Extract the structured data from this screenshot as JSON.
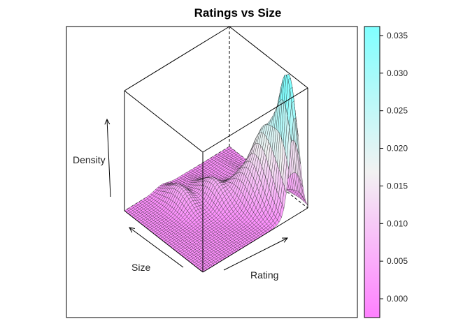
{
  "chart_data": {
    "type": "surface",
    "title": "Ratings vs Size",
    "xlabel": "Rating",
    "ylabel": "Size",
    "zlabel": "Density",
    "colorkey": {
      "ticks": [
        "0.000",
        "0.005",
        "0.010",
        "0.015",
        "0.020",
        "0.025",
        "0.030",
        "0.035"
      ],
      "tick_values": [
        0.0,
        0.005,
        0.01,
        0.015,
        0.02,
        0.025,
        0.03,
        0.035
      ],
      "range": [
        -0.0025,
        0.0362
      ],
      "color_low": "#ff80ff",
      "color_mid": "#f2f2f2",
      "color_high": "#80ffff"
    },
    "surface": {
      "z_max": 0.035,
      "peaks": [
        {
          "rating": 0.88,
          "size": 0.08,
          "density": 0.034
        },
        {
          "rating": 0.82,
          "size": 0.3,
          "density": 0.018
        },
        {
          "rating": 0.7,
          "size": 0.4,
          "density": 0.008
        },
        {
          "rating": 0.55,
          "size": 0.6,
          "density": 0.006
        },
        {
          "rating": 0.35,
          "size": 0.75,
          "density": 0.005
        }
      ]
    },
    "grid": false
  }
}
